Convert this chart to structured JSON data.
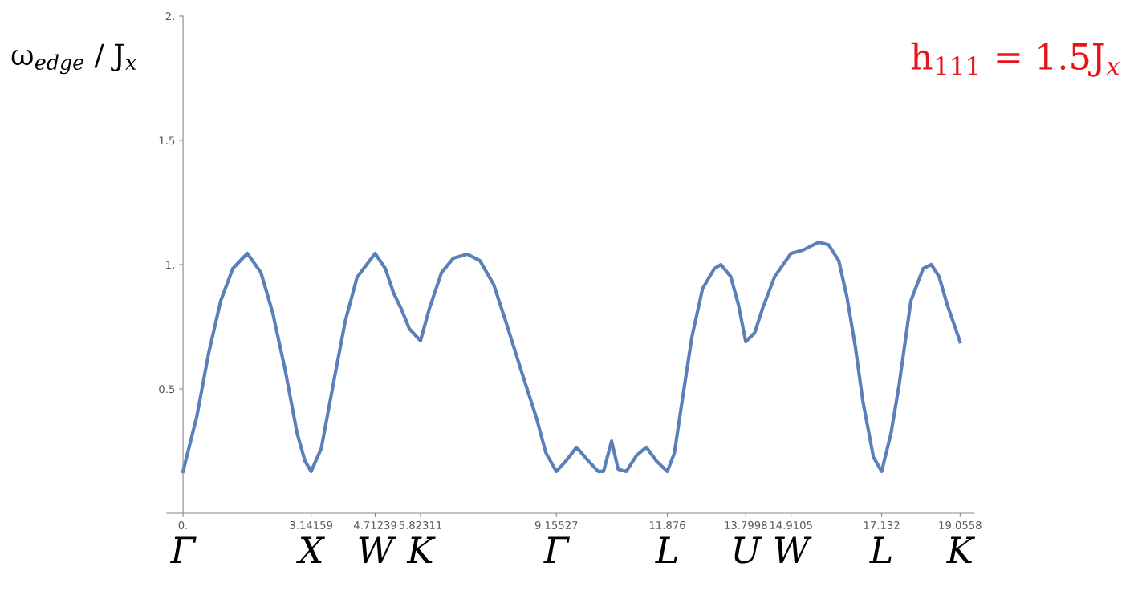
{
  "chart_data": {
    "type": "line",
    "title": "h$_{111}$ = 1.5J$_{x}$",
    "ylabel": "ω$_{edge}$ / J$_{x}$",
    "annotations": [
      "Γ",
      "X",
      "W",
      "K",
      "Γ",
      "L",
      "U",
      "W",
      "L",
      "K"
    ],
    "series": [
      {
        "color": "#5b7fb8",
        "x": [
          0,
          0.335,
          0.63,
          0.925,
          1.22,
          1.575,
          1.91,
          2.2,
          2.5,
          2.8,
          2.99,
          3.14159,
          3.39,
          3.68,
          3.98,
          4.27,
          4.71239,
          4.96,
          5.16,
          5.35,
          5.55,
          5.82311,
          6.04,
          6.34,
          6.63,
          6.97,
          7.28,
          7.62,
          7.91,
          8.31,
          8.66,
          8.9,
          9.15527,
          9.39,
          9.65,
          9.94,
          10.18,
          10.31,
          10.51,
          10.67,
          10.87,
          11.12,
          11.36,
          11.61,
          11.876,
          12.05,
          12.24,
          12.48,
          12.74,
          13.03,
          13.19,
          13.43,
          13.62,
          13.7998,
          14.02,
          14.21,
          14.51,
          14.9105,
          15.2,
          15.59,
          15.83,
          16.08,
          16.28,
          16.48,
          16.67,
          16.93,
          17.132,
          17.36,
          17.56,
          17.85,
          18.15,
          18.35,
          18.54,
          18.74,
          19.0558
        ],
        "values": [
          0.168,
          0.387,
          0.645,
          0.855,
          0.984,
          1.045,
          0.968,
          0.806,
          0.58,
          0.32,
          0.21,
          0.168,
          0.26,
          0.516,
          0.774,
          0.95,
          1.045,
          0.984,
          0.887,
          0.823,
          0.742,
          0.694,
          0.823,
          0.968,
          1.026,
          1.042,
          1.016,
          0.919,
          0.774,
          0.565,
          0.387,
          0.242,
          0.168,
          0.21,
          0.265,
          0.21,
          0.168,
          0.168,
          0.29,
          0.177,
          0.168,
          0.232,
          0.265,
          0.21,
          0.168,
          0.242,
          0.452,
          0.71,
          0.903,
          0.984,
          1.0,
          0.952,
          0.839,
          0.69,
          0.726,
          0.823,
          0.952,
          1.045,
          1.058,
          1.09,
          1.08,
          1.016,
          0.871,
          0.677,
          0.452,
          0.226,
          0.168,
          0.32,
          0.516,
          0.855,
          0.984,
          1.0,
          0.952,
          0.839,
          0.69
        ]
      }
    ],
    "xlim": [
      -0.4,
      19.4
    ],
    "ylim": [
      0,
      2
    ],
    "xticks": [
      {
        "value": 0,
        "label": "0."
      },
      3.14159,
      4.71239,
      5.82311,
      9.15527,
      11.876,
      13.7998,
      14.9105,
      17.132,
      19.0558
    ],
    "yticks": [
      {
        "value": 0.5,
        "label": "0.5"
      },
      {
        "value": 1,
        "label": "1."
      },
      {
        "value": 1.5,
        "label": "1.5"
      },
      {
        "value": 2,
        "label": "2."
      }
    ],
    "grid": false,
    "legend": false
  }
}
